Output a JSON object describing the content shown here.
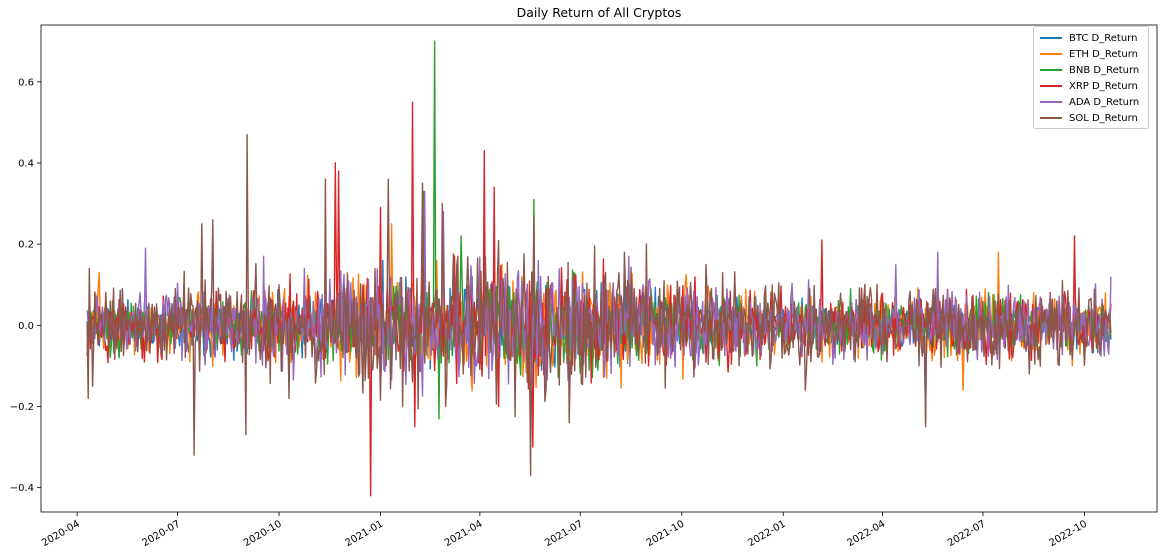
{
  "chart_data": {
    "type": "line",
    "title": "Daily Return of All Cryptos",
    "xlabel": "",
    "ylabel": "",
    "x_range": [
      "2020-04-10",
      "2022-10-25"
    ],
    "ylim": [
      -0.46,
      0.74
    ],
    "yticks": [
      -0.4,
      -0.2,
      0.0,
      0.2,
      0.4,
      0.6
    ],
    "ytick_labels": [
      "−0.4",
      "−0.2",
      "0.0",
      "0.2",
      "0.4",
      "0.6"
    ],
    "xticks": [
      "2020-04-01",
      "2020-07-01",
      "2020-10-01",
      "2021-01-01",
      "2021-04-01",
      "2021-07-01",
      "2021-10-01",
      "2022-01-01",
      "2022-04-01",
      "2022-07-01",
      "2022-10-01"
    ],
    "xtick_labels": [
      "2020-04",
      "2020-07",
      "2020-10",
      "2021-01",
      "2021-04",
      "2021-07",
      "2021-10",
      "2022-01",
      "2022-04",
      "2022-07",
      "2022-10"
    ],
    "grid": false,
    "legend_position": "top-right",
    "series": [
      {
        "name": "BTC D_Return",
        "color": "#1f77b4",
        "seed": 11,
        "base": 0.035,
        "amp": 0.018,
        "spikes": [
          [
            "2020-05-12",
            0.09
          ],
          [
            "2021-01-03",
            0.16
          ],
          [
            "2021-03-25",
            0.12
          ],
          [
            "2022-06-13",
            -0.15
          ]
        ]
      },
      {
        "name": "ETH D_Return",
        "color": "#ff7f0e",
        "seed": 23,
        "base": 0.045,
        "amp": 0.025,
        "spikes": [
          [
            "2020-04-21",
            0.13
          ],
          [
            "2021-01-11",
            0.25
          ],
          [
            "2021-05-19",
            -0.23
          ],
          [
            "2022-06-13",
            -0.16
          ],
          [
            "2022-07-15",
            0.18
          ],
          [
            "2022-09-20",
            -0.1
          ]
        ]
      },
      {
        "name": "BNB D_Return",
        "color": "#2ca02c",
        "seed": 37,
        "base": 0.04,
        "amp": 0.025,
        "spikes": [
          [
            "2021-02-09",
            0.33
          ],
          [
            "2021-02-19",
            0.7
          ],
          [
            "2021-02-23",
            -0.23
          ],
          [
            "2021-03-15",
            0.22
          ],
          [
            "2021-04-05",
            0.2
          ],
          [
            "2021-05-20",
            0.31
          ],
          [
            "2021-05-19",
            -0.2
          ]
        ]
      },
      {
        "name": "XRP D_Return",
        "color": "#d62728",
        "seed": 51,
        "base": 0.045,
        "amp": 0.03,
        "spikes": [
          [
            "2020-11-21",
            0.4
          ],
          [
            "2020-11-24",
            0.38
          ],
          [
            "2020-12-23",
            -0.42
          ],
          [
            "2021-01-01",
            0.29
          ],
          [
            "2021-01-30",
            0.55
          ],
          [
            "2021-02-01",
            -0.25
          ],
          [
            "2021-04-05",
            0.43
          ],
          [
            "2021-04-14",
            0.34
          ],
          [
            "2021-04-18",
            -0.2
          ],
          [
            "2021-05-19",
            -0.3
          ],
          [
            "2022-02-05",
            0.21
          ],
          [
            "2022-09-22",
            0.22
          ]
        ]
      },
      {
        "name": "ADA D_Return",
        "color": "#9467bd",
        "seed": 67,
        "base": 0.05,
        "amp": 0.03,
        "spikes": [
          [
            "2020-06-02",
            0.19
          ],
          [
            "2020-09-17",
            0.17
          ],
          [
            "2021-02-10",
            0.33
          ],
          [
            "2021-02-27",
            0.28
          ],
          [
            "2021-08-14",
            0.17
          ],
          [
            "2022-04-13",
            0.15
          ],
          [
            "2022-05-10",
            -0.24
          ],
          [
            "2022-05-21",
            0.18
          ],
          [
            "2022-10-25",
            0.12
          ]
        ]
      },
      {
        "name": "SOL D_Return",
        "color": "#8c564b",
        "seed": 83,
        "base": 0.06,
        "amp": 0.04,
        "spikes": [
          [
            "2020-04-11",
            -0.18
          ],
          [
            "2020-04-12",
            0.14
          ],
          [
            "2020-04-15",
            -0.15
          ],
          [
            "2020-07-16",
            -0.32
          ],
          [
            "2020-07-23",
            0.25
          ],
          [
            "2020-08-02",
            0.26
          ],
          [
            "2020-09-01",
            -0.27
          ],
          [
            "2020-09-02",
            0.47
          ],
          [
            "2020-10-10",
            -0.18
          ],
          [
            "2020-11-12",
            0.36
          ],
          [
            "2020-12-21",
            -0.13
          ],
          [
            "2021-01-08",
            0.36
          ],
          [
            "2021-01-21",
            -0.2
          ],
          [
            "2021-02-08",
            0.35
          ],
          [
            "2021-02-26",
            0.3
          ],
          [
            "2021-03-01",
            -0.2
          ],
          [
            "2021-05-17",
            -0.37
          ],
          [
            "2021-05-20",
            0.27
          ],
          [
            "2021-06-21",
            -0.24
          ],
          [
            "2021-08-10",
            0.18
          ],
          [
            "2021-08-30",
            0.2
          ],
          [
            "2022-01-21",
            -0.16
          ],
          [
            "2022-05-10",
            -0.25
          ]
        ]
      }
    ]
  }
}
